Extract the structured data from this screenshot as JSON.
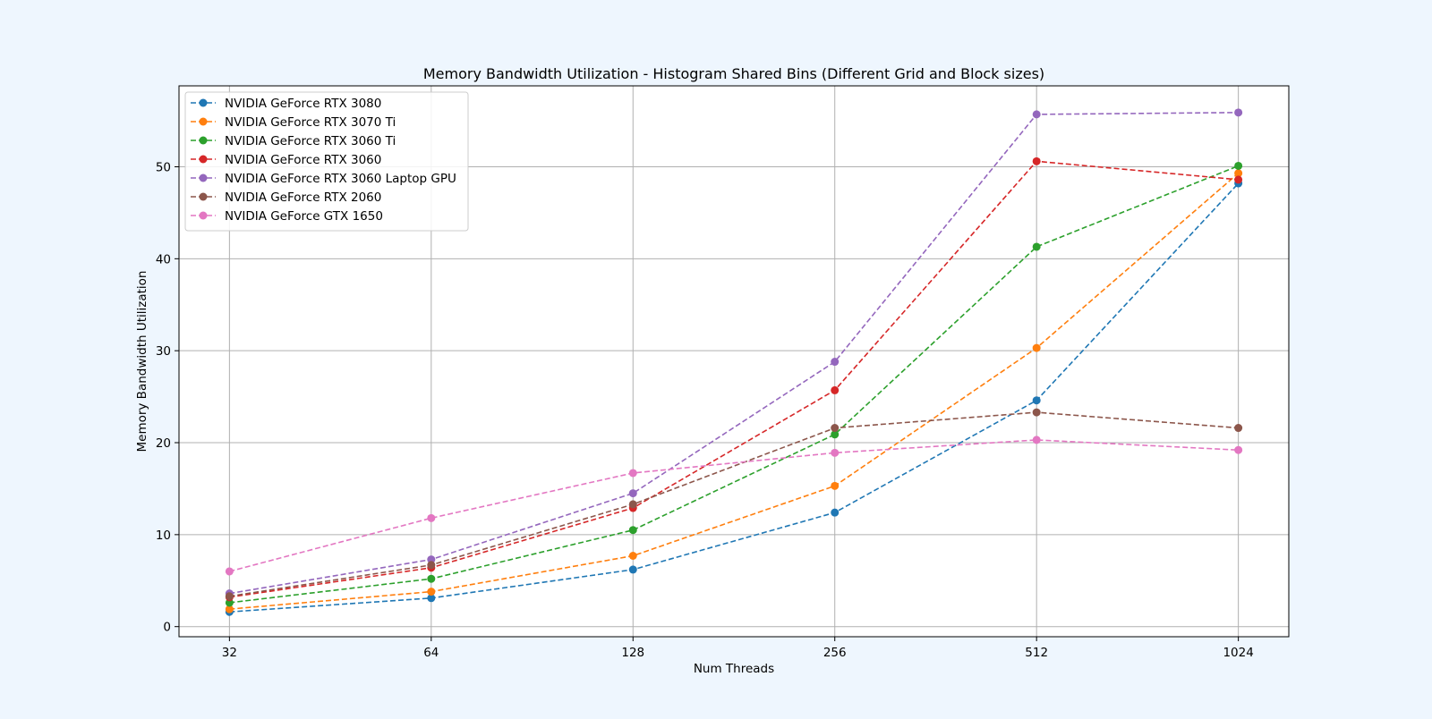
{
  "chart_data": {
    "type": "line",
    "title": "Memory Bandwidth Utilization - Histogram Shared Bins (Different Grid and Block sizes)",
    "xlabel": "Num Threads",
    "ylabel": "Memory Bandwidth Utilization",
    "x_scale": "log2",
    "x": [
      32,
      64,
      128,
      256,
      512,
      1024
    ],
    "x_tick_labels": [
      "32",
      "64",
      "128",
      "256",
      "512",
      "1024"
    ],
    "y_ticks": [
      0,
      10,
      20,
      30,
      40,
      50
    ],
    "ylim": [
      -1.1,
      58.8
    ],
    "grid": true,
    "legend_position": "upper-left",
    "line_style": "dashed",
    "marker": "circle",
    "series": [
      {
        "name": "NVIDIA GeForce RTX 3080",
        "color": "#1f77b4",
        "values": [
          1.6,
          3.1,
          6.2,
          12.4,
          24.6,
          48.2
        ]
      },
      {
        "name": "NVIDIA GeForce RTX 3070 Ti",
        "color": "#ff7f0e",
        "values": [
          1.9,
          3.8,
          7.7,
          15.3,
          30.3,
          49.3
        ]
      },
      {
        "name": "NVIDIA GeForce RTX 3060 Ti",
        "color": "#2ca02c",
        "values": [
          2.6,
          5.2,
          10.5,
          20.9,
          41.3,
          50.1
        ]
      },
      {
        "name": "NVIDIA GeForce RTX 3060",
        "color": "#d62728",
        "values": [
          3.2,
          6.4,
          12.9,
          25.7,
          50.6,
          48.6
        ]
      },
      {
        "name": "NVIDIA GeForce RTX 3060 Laptop GPU",
        "color": "#9467bd",
        "values": [
          3.6,
          7.3,
          14.5,
          28.8,
          55.7,
          55.9
        ]
      },
      {
        "name": "NVIDIA GeForce RTX 2060",
        "color": "#8c564b",
        "values": [
          3.3,
          6.7,
          13.3,
          21.6,
          23.3,
          21.6
        ]
      },
      {
        "name": "NVIDIA GeForce GTX 1650",
        "color": "#e377c2",
        "values": [
          6.0,
          11.8,
          16.7,
          18.9,
          20.3,
          19.2
        ]
      }
    ]
  }
}
